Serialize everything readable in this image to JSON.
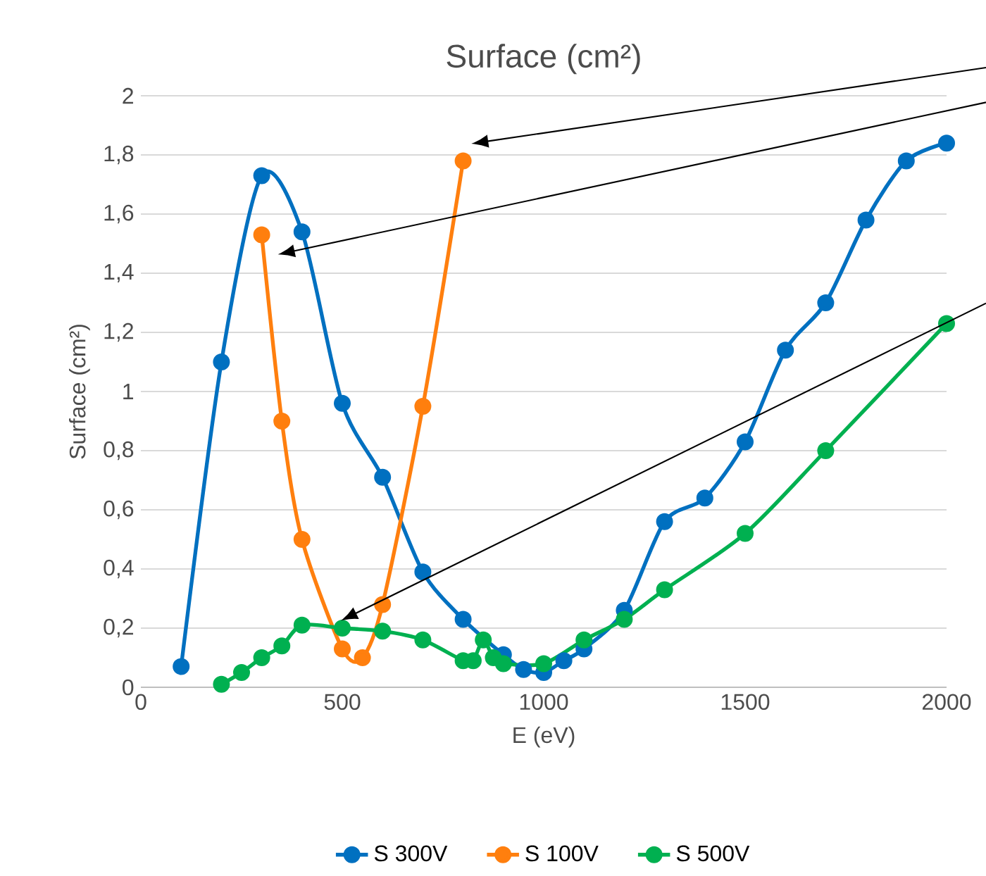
{
  "chart_data": {
    "type": "line",
    "title": "Surface (cm²)",
    "xlabel": "E (eV)",
    "ylabel": "Surface (cm²)",
    "xlim": [
      0,
      2000
    ],
    "xticks": [
      0,
      500,
      1000,
      1500,
      2000
    ],
    "ylim": [
      0,
      2
    ],
    "yticks": [
      0,
      {
        "value": 0.2,
        "label": "0,2"
      },
      {
        "value": 0.4,
        "label": "0,4"
      },
      {
        "value": 0.6,
        "label": "0,6"
      },
      {
        "value": 0.8,
        "label": "0,8"
      },
      1,
      {
        "value": 1.2,
        "label": "1,2"
      },
      {
        "value": 1.4,
        "label": "1,4"
      },
      {
        "value": 1.6,
        "label": "1,6"
      },
      {
        "value": 1.8,
        "label": "1,8"
      },
      2
    ],
    "grid": "y",
    "legend": "bottom",
    "marker": "circle",
    "line_style": "solid",
    "series": [
      {
        "name": "S 300V",
        "color": "#0070c0",
        "x": [
          100,
          200,
          300,
          400,
          500,
          600,
          700,
          800,
          900,
          950,
          1000,
          1050,
          1100,
          1200,
          1300,
          1400,
          1500,
          1600,
          1700,
          1800,
          1900,
          2000
        ],
        "values": [
          0.07,
          1.1,
          1.73,
          1.54,
          0.96,
          0.71,
          0.39,
          0.23,
          0.11,
          0.06,
          0.05,
          0.09,
          0.13,
          0.26,
          0.56,
          0.64,
          0.83,
          1.14,
          1.3,
          1.58,
          1.78,
          1.84
        ]
      },
      {
        "name": "S 100V",
        "color": "#ff7f0e",
        "x": [
          300,
          350,
          400,
          500,
          550,
          600,
          700,
          800
        ],
        "values": [
          1.53,
          0.9,
          0.5,
          0.13,
          0.1,
          0.28,
          0.95,
          1.78
        ]
      },
      {
        "name": "S 500V",
        "color": "#00b050",
        "x": [
          200,
          250,
          300,
          350,
          400,
          500,
          600,
          700,
          800,
          825,
          850,
          875,
          900,
          1000,
          1100,
          1200,
          1300,
          1500,
          1700,
          2000
        ],
        "values": [
          0.01,
          0.05,
          0.1,
          0.14,
          0.21,
          0.2,
          0.19,
          0.16,
          0.09,
          0.09,
          0.16,
          0.1,
          0.08,
          0.08,
          0.16,
          0.23,
          0.33,
          0.52,
          0.8,
          1.23
        ]
      }
    ]
  }
}
